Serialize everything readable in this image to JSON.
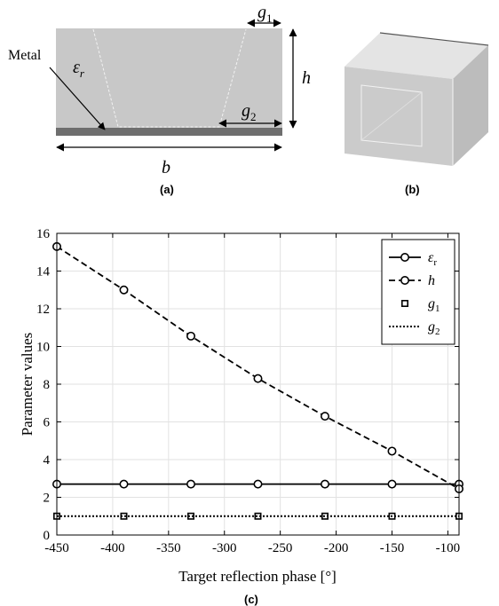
{
  "panel_a": {
    "metal_label": "Metal",
    "eps_symbol": "ε",
    "eps_sub": "r",
    "h_label": "h",
    "b_label": "b",
    "g1_base": "g",
    "g1_sub": "1",
    "g2_base": "g",
    "g2_sub": "2",
    "caption": "(a)"
  },
  "panel_b": {
    "caption": "(b)"
  },
  "panel_c": {
    "caption": "(c)"
  },
  "colors": {
    "substrate": "#c8c8c8",
    "metal": "#6e6e6e",
    "cube_top": "#e4e4e4",
    "cube_front": "#cbcbcb",
    "cube_side": "#bcbcbc"
  },
  "chart_data": {
    "type": "line",
    "xlabel": "Target reflection phase [°]",
    "ylabel": "Parameter values",
    "xlim": [
      -450,
      -90
    ],
    "ylim": [
      0,
      16
    ],
    "xticks": [
      -450,
      -400,
      -350,
      -300,
      -250,
      -200,
      -150,
      -100
    ],
    "yticks": [
      0,
      2,
      4,
      6,
      8,
      10,
      12,
      14,
      16
    ],
    "grid": true,
    "legend_position": "top-right",
    "series": [
      {
        "name": "ε_r",
        "label_base": "ε",
        "label_sub": "r",
        "line": "solid",
        "marker": "circle",
        "x": [
          -450,
          -390,
          -330,
          -270,
          -210,
          -150,
          -90
        ],
        "y": [
          2.7,
          2.7,
          2.7,
          2.7,
          2.7,
          2.7,
          2.7
        ]
      },
      {
        "name": "h",
        "label_base": "h",
        "label_sub": "",
        "line": "dashed",
        "marker": "circle",
        "x": [
          -450,
          -390,
          -330,
          -270,
          -210,
          -150,
          -90
        ],
        "y": [
          15.3,
          13.0,
          10.55,
          8.3,
          6.3,
          4.45,
          2.45
        ]
      },
      {
        "name": "g_1",
        "label_base": "g",
        "label_sub": "1",
        "line": "none",
        "marker": "square",
        "x": [
          -450,
          -390,
          -330,
          -270,
          -210,
          -150,
          -90
        ],
        "y": [
          1.0,
          1.0,
          1.0,
          1.0,
          1.0,
          1.0,
          1.0
        ]
      },
      {
        "name": "g_2",
        "label_base": "g",
        "label_sub": "2",
        "line": "dotted",
        "marker": "none",
        "x": [
          -450,
          -390,
          -330,
          -270,
          -210,
          -150,
          -90
        ],
        "y": [
          1.0,
          1.0,
          1.0,
          1.0,
          1.0,
          1.0,
          1.0
        ]
      }
    ]
  }
}
